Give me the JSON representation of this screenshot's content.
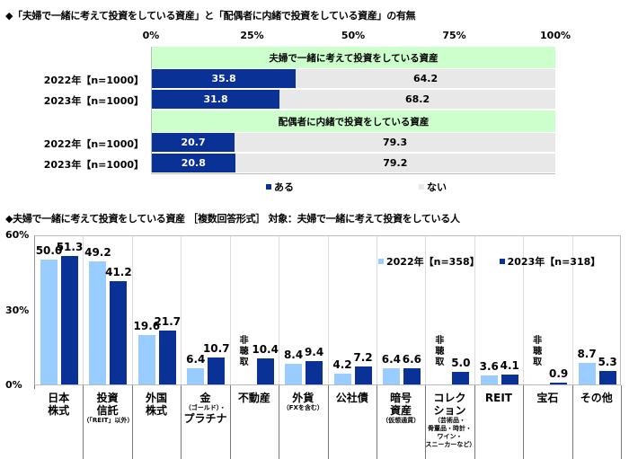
{
  "top": {
    "title": "◆「夫婦で一緒に考えて投資をしている資産」と「配偶者に内緒で投資をしている資産」の有無",
    "axis_ticks": [
      "0%",
      "25%",
      "50%",
      "75%",
      "100%"
    ],
    "groups": [
      {
        "label": "夫婦で一緒に考えて投資をしている資産",
        "rows": [
          {
            "label": "2022年【n=1000】",
            "aru": 35.8,
            "nai": 64.2,
            "aru_text": "35.8",
            "nai_text": "64.2"
          },
          {
            "label": "2023年【n=1000】",
            "aru": 31.8,
            "nai": 68.2,
            "aru_text": "31.8",
            "nai_text": "68.2"
          }
        ]
      },
      {
        "label": "配偶者に内緒で投資をしている資産",
        "rows": [
          {
            "label": "2022年【n=1000】",
            "aru": 20.7,
            "nai": 79.3,
            "aru_text": "20.7",
            "nai_text": "79.3"
          },
          {
            "label": "2023年【n=1000】",
            "aru": 20.8,
            "nai": 79.2,
            "aru_text": "20.8",
            "nai_text": "79.2"
          }
        ]
      }
    ],
    "legend": [
      {
        "label": "ある",
        "color": "#0a3296"
      },
      {
        "label": "ない",
        "color": "#e8e8e8"
      }
    ]
  },
  "bottom": {
    "title": "◆夫婦で一緒に考えて投資をしている資産 ［複数回答形式］ 対象：夫婦で一緒に考えて投資をしている人",
    "y_ticks": [
      "60%",
      "30%",
      "0%"
    ],
    "legend": [
      {
        "label": "2022年【n=358】",
        "color": "#99ccff"
      },
      {
        "label": "2023年【n=318】",
        "color": "#0a3296"
      }
    ],
    "no_data_label": "非聴取",
    "categories": [
      {
        "main": [
          "日本",
          "株式"
        ],
        "sub": []
      },
      {
        "main": [
          "投資",
          "信託"
        ],
        "sub": [
          "（「REIT」以外）"
        ]
      },
      {
        "main": [
          "外国",
          "株式"
        ],
        "sub": []
      },
      {
        "main": [
          "金"
        ],
        "sub": [
          "（ゴールド）・"
        ],
        "main2": [
          "プラチナ"
        ]
      },
      {
        "main": [
          "不動産"
        ],
        "sub": []
      },
      {
        "main": [
          "外貨"
        ],
        "sub": [
          "（FXを含む）"
        ]
      },
      {
        "main": [
          "公社債"
        ],
        "sub": []
      },
      {
        "main": [
          "暗号",
          "資産"
        ],
        "sub": [
          "（仮想通貨）"
        ]
      },
      {
        "main": [
          "コレク",
          "ション"
        ],
        "sub": [
          "（芸術品・",
          "骨董品・時計・",
          "ワイン・",
          "スニーカーなど）"
        ]
      },
      {
        "main": [
          "REIT"
        ],
        "sub": []
      },
      {
        "main": [
          "宝石"
        ],
        "sub": []
      },
      {
        "main": [
          "その他"
        ],
        "sub": []
      }
    ]
  },
  "chart_data": [
    {
      "type": "bar",
      "orientation": "horizontal-stacked-100",
      "title": "「夫婦で一緒に考えて投資をしている資産」と「配偶者に内緒で投資をしている資産」の有無",
      "categories": [
        "夫婦で一緒に考えて投資をしている資産 2022年【n=1000】",
        "夫婦で一緒に考えて投資をしている資産 2023年【n=1000】",
        "配偶者に内緒で投資をしている資産 2022年【n=1000】",
        "配偶者に内緒で投資をしている資産 2023年【n=1000】"
      ],
      "series": [
        {
          "name": "ある",
          "values": [
            35.8,
            31.8,
            20.7,
            20.8
          ]
        },
        {
          "name": "ない",
          "values": [
            64.2,
            68.2,
            79.3,
            79.2
          ]
        }
      ],
      "xlim": [
        0,
        100
      ],
      "x_ticks": [
        "0%",
        "25%",
        "50%",
        "75%",
        "100%"
      ],
      "legend_position": "bottom"
    },
    {
      "type": "bar",
      "title": "夫婦で一緒に考えて投資をしている資産 ［複数回答形式］ 対象：夫婦で一緒に考えて投資をしている人",
      "categories": [
        "日本株式",
        "投資信託（「REIT」以外）",
        "外国株式",
        "金（ゴールド）・プラチナ",
        "不動産",
        "外貨（FXを含む）",
        "公社債",
        "暗号資産（仮想通貨）",
        "コレクション（芸術品・骨董品・時計・ワイン・スニーカーなど）",
        "REIT",
        "宝石",
        "その他"
      ],
      "series": [
        {
          "name": "2022年【n=358】",
          "values": [
            50.0,
            49.2,
            19.6,
            6.4,
            null,
            8.4,
            4.2,
            6.4,
            null,
            3.6,
            null,
            8.7
          ]
        },
        {
          "name": "2023年【n=318】",
          "values": [
            51.3,
            41.2,
            21.7,
            10.7,
            10.4,
            9.4,
            7.2,
            6.6,
            5.0,
            4.1,
            0.9,
            5.3
          ]
        }
      ],
      "annotations": [
        "2022年 不動産・コレクション・宝石: 非聴取"
      ],
      "ylim": [
        0,
        60
      ],
      "y_ticks": [
        "0%",
        "30%",
        "60%"
      ],
      "grid": "vertical category separators",
      "legend_position": "top-right inside"
    }
  ]
}
